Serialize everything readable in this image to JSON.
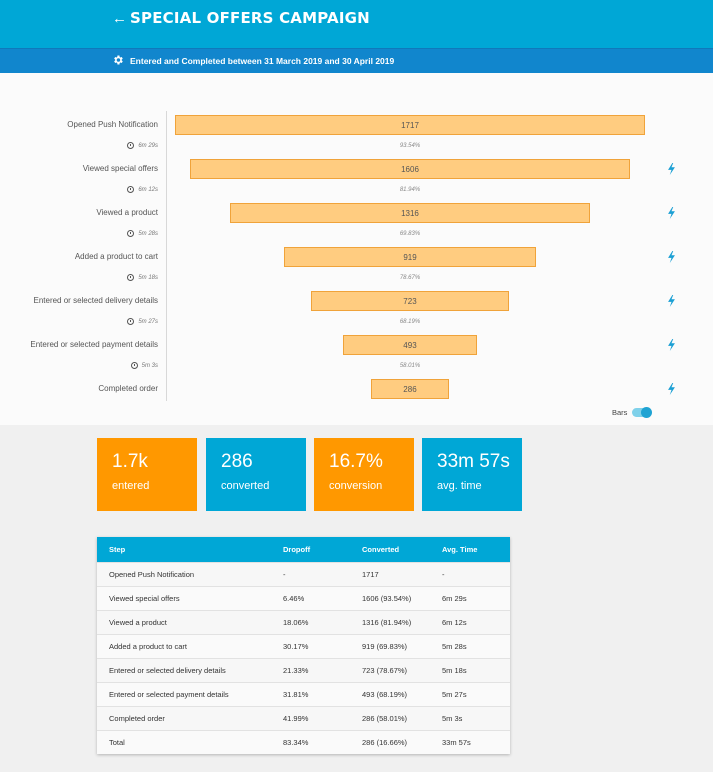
{
  "header": {
    "back_icon": "←",
    "title": "SPECIAL OFFERS CAMPAIGN",
    "subtitle": "Entered and Completed between 31 March 2019 and 30 April 2019"
  },
  "funnel": {
    "max_value": 1717,
    "stages": [
      {
        "label": "Opened Push Notification",
        "value": 1717,
        "value_text": "1717"
      },
      {
        "label": "Viewed special offers",
        "value": 1606,
        "value_text": "1606"
      },
      {
        "label": "Viewed a product",
        "value": 1316,
        "value_text": "1316"
      },
      {
        "label": "Added a product to cart",
        "value": 919,
        "value_text": "919"
      },
      {
        "label": "Entered or selected delivery details",
        "value": 723,
        "value_text": "723"
      },
      {
        "label": "Entered or selected payment details",
        "value": 493,
        "value_text": "493"
      },
      {
        "label": "Completed order",
        "value": 286,
        "value_text": "286"
      }
    ],
    "transitions": [
      {
        "time": "6m 29s",
        "pct": "93.54%"
      },
      {
        "time": "6m 12s",
        "pct": "81.94%"
      },
      {
        "time": "5m 28s",
        "pct": "69.83%"
      },
      {
        "time": "5m 18s",
        "pct": "78.67%"
      },
      {
        "time": "5m 27s",
        "pct": "68.19%"
      },
      {
        "time": "5m 3s",
        "pct": "58.01%"
      }
    ],
    "toggle_label": "Bars",
    "toggle_on": true,
    "bar_color": "#ffcc80",
    "bar_border": "#f0a33a",
    "bolt_color": "#1a9fd4"
  },
  "stats": [
    {
      "value": "1.7k",
      "label": "entered",
      "color": "#ff9800"
    },
    {
      "value": "286",
      "label": "converted",
      "color": "#00a7d6"
    },
    {
      "value": "16.7%",
      "label": "conversion",
      "color": "#ff9800"
    },
    {
      "value": "33m 57s",
      "label": "avg. time",
      "color": "#00a7d6"
    }
  ],
  "table": {
    "headers": [
      "Step",
      "Dropoff",
      "Converted",
      "Avg. Time"
    ],
    "rows": [
      [
        "Opened Push Notification",
        "-",
        "1717",
        "-"
      ],
      [
        "Viewed special offers",
        "6.46%",
        "1606 (93.54%)",
        "6m 29s"
      ],
      [
        "Viewed a product",
        "18.06%",
        "1316 (81.94%)",
        "6m 12s"
      ],
      [
        "Added a product to cart",
        "30.17%",
        "919 (69.83%)",
        "5m 28s"
      ],
      [
        "Entered or selected delivery details",
        "21.33%",
        "723 (78.67%)",
        "5m 18s"
      ],
      [
        "Entered or selected payment details",
        "31.81%",
        "493 (68.19%)",
        "5m 27s"
      ],
      [
        "Completed order",
        "41.99%",
        "286 (58.01%)",
        "5m 3s"
      ],
      [
        "Total",
        "83.34%",
        "286 (16.66%)",
        "33m 57s"
      ]
    ]
  },
  "colors": {
    "header_bg": "#00a7d6",
    "subheader_bg": "#1186cd",
    "accent_orange": "#ff9800"
  }
}
